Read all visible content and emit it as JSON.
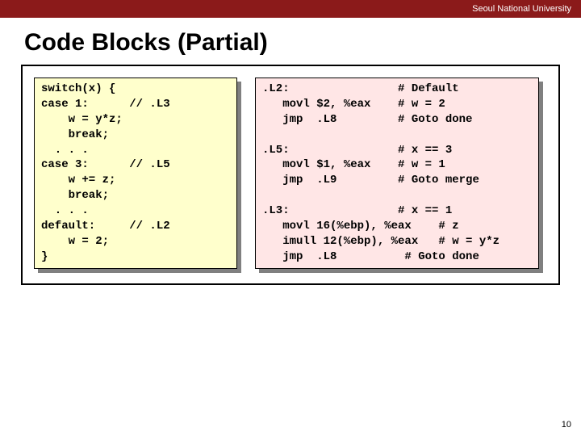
{
  "header": {
    "university": "Seoul National University"
  },
  "title": "Code Blocks (Partial)",
  "left_code": "switch(x) {\ncase 1:      // .L3\n    w = y*z;\n    break;\n  . . .\ncase 3:      // .L5\n    w += z;\n    break;\n  . . .\ndefault:     // .L2\n    w = 2;\n}",
  "right_code": ".L2:                # Default\n   movl $2, %eax    # w = 2\n   jmp  .L8         # Goto done\n\n.L5:                # x == 3\n   movl $1, %eax    # w = 1\n   jmp  .L9         # Goto merge\n\n.L3:                # x == 1\n   movl 16(%ebp), %eax    # z\n   imull 12(%ebp), %eax   # w = y*z\n   jmp  .L8          # Goto done",
  "page_number": "10",
  "colors": {
    "topbar": "#8b1a1a",
    "left_bg": "#ffffcc",
    "right_bg": "#ffe6e6",
    "shadow": "#808080"
  }
}
